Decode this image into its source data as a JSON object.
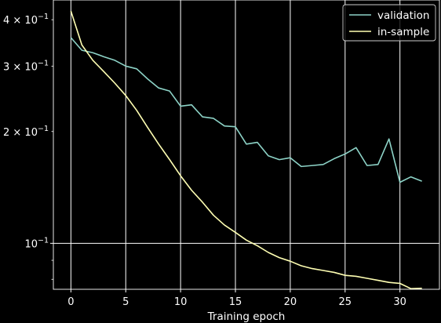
{
  "chart_data": {
    "type": "line",
    "title": "",
    "xlabel": "Training epoch",
    "ylabel": "",
    "yscale": "log",
    "xlim": [
      -1.6,
      33.6
    ],
    "ylim": [
      0.0752,
      0.452
    ],
    "grid": true,
    "legend_position": "top-right",
    "x_ticks": [
      0,
      5,
      10,
      15,
      20,
      25,
      30
    ],
    "x_tick_labels": [
      "0",
      "5",
      "10",
      "15",
      "20",
      "25",
      "30"
    ],
    "y_major_ticks": [
      0.1,
      0.2,
      0.3,
      0.4
    ],
    "y_major_tick_labels": [
      {
        "base": "10",
        "exp": "−1"
      },
      {
        "base": "2 × 10",
        "exp": "−1"
      },
      {
        "base": "3 × 10",
        "exp": "−1"
      },
      {
        "base": "4 × 10",
        "exp": "−1"
      }
    ],
    "y_minor_ticks": [
      0.08,
      0.09
    ],
    "x": [
      0,
      1,
      2,
      3,
      4,
      5,
      6,
      7,
      8,
      9,
      10,
      11,
      12,
      13,
      14,
      15,
      16,
      17,
      18,
      19,
      20,
      21,
      22,
      23,
      24,
      25,
      26,
      27,
      28,
      29,
      30,
      31,
      32
    ],
    "series": [
      {
        "name": "validation",
        "color": "#8dd3c7",
        "values": [
          0.358,
          0.331,
          0.326,
          0.318,
          0.311,
          0.3,
          0.295,
          0.277,
          0.262,
          0.257,
          0.234,
          0.236,
          0.219,
          0.217,
          0.207,
          0.206,
          0.185,
          0.187,
          0.172,
          0.168,
          0.17,
          0.161,
          0.162,
          0.163,
          0.169,
          0.174,
          0.181,
          0.162,
          0.163,
          0.191,
          0.146,
          0.151,
          0.147
        ]
      },
      {
        "name": "in-sample",
        "color": "#ffffb3",
        "values": [
          0.422,
          0.342,
          0.311,
          0.29,
          0.27,
          0.25,
          0.228,
          0.205,
          0.185,
          0.168,
          0.152,
          0.139,
          0.129,
          0.119,
          0.112,
          0.107,
          0.102,
          0.0985,
          0.0945,
          0.0915,
          0.0895,
          0.087,
          0.0855,
          0.0845,
          0.0835,
          0.082,
          0.0815,
          0.0805,
          0.0795,
          0.0785,
          0.078,
          0.0755,
          0.0757
        ]
      }
    ]
  }
}
